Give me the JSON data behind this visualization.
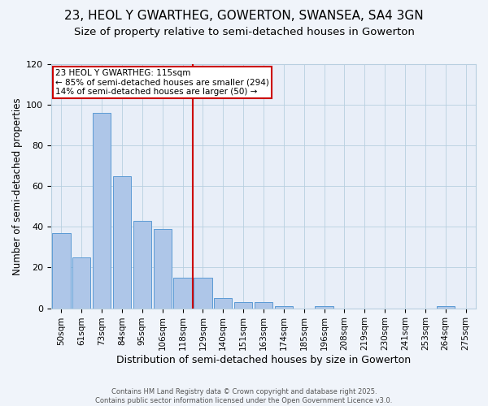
{
  "title": "23, HEOL Y GWARTHEG, GOWERTON, SWANSEA, SA4 3GN",
  "subtitle": "Size of property relative to semi-detached houses in Gowerton",
  "xlabel": "Distribution of semi-detached houses by size in Gowerton",
  "ylabel": "Number of semi-detached properties",
  "bins": [
    "50sqm",
    "61sqm",
    "73sqm",
    "84sqm",
    "95sqm",
    "106sqm",
    "118sqm",
    "129sqm",
    "140sqm",
    "151sqm",
    "163sqm",
    "174sqm",
    "185sqm",
    "196sqm",
    "208sqm",
    "219sqm",
    "230sqm",
    "241sqm",
    "253sqm",
    "264sqm",
    "275sqm"
  ],
  "values": [
    37,
    25,
    96,
    65,
    43,
    39,
    15,
    15,
    5,
    3,
    3,
    1,
    0,
    1,
    0,
    0,
    0,
    0,
    0,
    1,
    0
  ],
  "bar_color": "#aec6e8",
  "bar_edge_color": "#5b9bd5",
  "vline_x_index": 6,
  "vline_color": "#cc0000",
  "annotation_lines": [
    "23 HEOL Y GWARTHEG: 115sqm",
    "← 85% of semi-detached houses are smaller (294)",
    "14% of semi-detached houses are larger (50) →"
  ],
  "annotation_box_color": "#cc0000",
  "ylim": [
    0,
    120
  ],
  "yticks": [
    0,
    20,
    40,
    60,
    80,
    100,
    120
  ],
  "grid_color": "#b8cfe0",
  "background_color": "#e8eef8",
  "fig_background_color": "#f0f4fa",
  "footer": "Contains HM Land Registry data © Crown copyright and database right 2025.\nContains public sector information licensed under the Open Government Licence v3.0.",
  "title_fontsize": 11,
  "subtitle_fontsize": 9.5,
  "xlabel_fontsize": 9,
  "ylabel_fontsize": 8.5,
  "annotation_fontsize": 7.5,
  "footer_fontsize": 6,
  "tick_fontsize": 7.5,
  "ytick_fontsize": 8
}
